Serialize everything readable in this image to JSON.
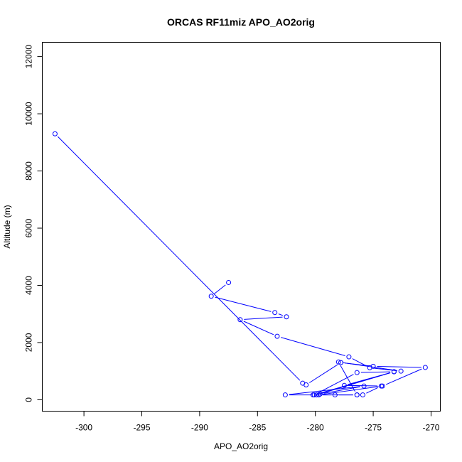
{
  "chart_data": {
    "type": "line",
    "title": "ORCAS RF11miz APO_AO2orig",
    "xlabel": "APO_AO2orig",
    "ylabel": "Altitude (m)",
    "xlim": [
      -303.6,
      -269.2
    ],
    "ylim": [
      -400,
      12500
    ],
    "x_ticks": [
      -300,
      -295,
      -290,
      -285,
      -280,
      -275,
      -270
    ],
    "y_ticks": [
      0,
      2000,
      4000,
      6000,
      8000,
      10000,
      12000
    ],
    "grid": false,
    "series": [
      {
        "color": "#0000ff",
        "marker": "open-circle",
        "x": [
          -302.5,
          -281.1,
          -280.8,
          -277.8,
          -275.0,
          -270.5,
          -274.2,
          -279.7,
          -278.3,
          -276.4,
          -275.9,
          -274.3,
          -277.5,
          -273.2,
          -280.1,
          -276.4,
          -273.2,
          -279.9,
          -282.6,
          -275.8,
          -279.6,
          -280.2,
          -276.4,
          -278.0,
          -272.6,
          -275.3,
          -277.1,
          -283.3,
          -286.5,
          -282.5,
          -283.5,
          -289.0,
          -287.5
        ],
        "y": [
          9300,
          580,
          520,
          1300,
          1170,
          1130,
          480,
          170,
          170,
          170,
          170,
          480,
          500,
          980,
          170,
          950,
          980,
          170,
          170,
          480,
          200,
          170,
          170,
          1320,
          1000,
          1120,
          1500,
          2220,
          2800,
          2900,
          3050,
          3620,
          4100
        ]
      }
    ]
  }
}
